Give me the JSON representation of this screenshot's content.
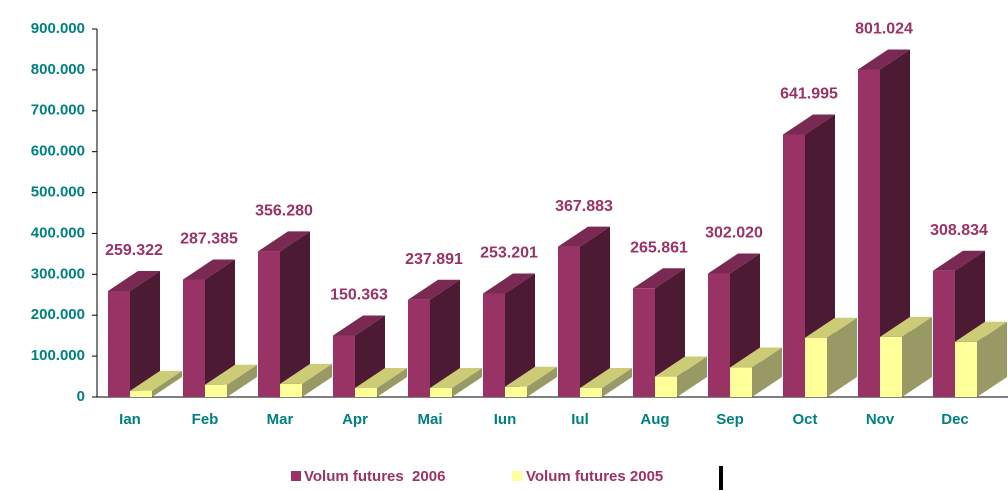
{
  "chart_data": {
    "type": "bar3d",
    "categories": [
      "Ian",
      "Feb",
      "Mar",
      "Apr",
      "Mai",
      "Iun",
      "Iul",
      "Aug",
      "Sep",
      "Oct",
      "Nov",
      "Dec"
    ],
    "series": [
      {
        "name": "Volum futures  2006",
        "color": "#993366",
        "values": [
          259322,
          287385,
          356280,
          150363,
          237891,
          253201,
          367883,
          265861,
          302020,
          641995,
          801024,
          308834
        ],
        "value_labels": [
          "259.322",
          "287.385",
          "356.280",
          "150.363",
          "237.891",
          "253.201",
          "367.883",
          "265.861",
          "302.020",
          "641.995",
          "801.024",
          "308.834"
        ]
      },
      {
        "name": "Volum futures 2005",
        "color": "#ffff99",
        "values": [
          15000,
          30000,
          32000,
          22000,
          22000,
          25000,
          22000,
          50000,
          72000,
          145000,
          147000,
          135000
        ]
      }
    ],
    "ylim": [
      0,
      900000
    ],
    "yticks": [
      0,
      {
        "value": 100000,
        "label": "100.000"
      },
      {
        "value": 200000,
        "label": "200.000"
      },
      {
        "value": 300000,
        "label": "300.000"
      },
      {
        "value": 400000,
        "label": "400.000"
      },
      {
        "value": 500000,
        "label": "500.000"
      },
      {
        "value": 600000,
        "label": "600.000"
      },
      {
        "value": 700000,
        "label": "700.000"
      },
      {
        "value": 800000,
        "label": "800.000"
      },
      {
        "value": 900000,
        "label": "900.000"
      }
    ]
  }
}
